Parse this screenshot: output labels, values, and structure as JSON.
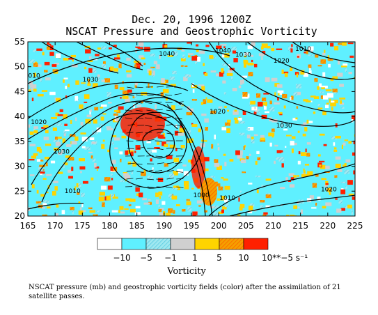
{
  "chart_data": {
    "type": "heatmap",
    "title": "Dec. 20, 1996  1200Z",
    "subtitle": "NSCAT Pressure and Geostrophic Vorticity",
    "xlim": [
      165,
      225
    ],
    "ylim": [
      20,
      55
    ],
    "x_ticks": [
      "165",
      "170",
      "175",
      "180",
      "185",
      "190",
      "195",
      "200",
      "205",
      "210",
      "215",
      "220",
      "225"
    ],
    "y_ticks": [
      "20",
      "25",
      "30",
      "35",
      "40",
      "45",
      "50",
      "55"
    ],
    "contour_labels": [
      {
        "text": "1040",
        "x": 190.5,
        "y": 52.2
      },
      {
        "text": "1040",
        "x": 200.8,
        "y": 52.8
      },
      {
        "text": "1030",
        "x": 204.5,
        "y": 52.0
      },
      {
        "text": "1020",
        "x": 211.5,
        "y": 50.8
      },
      {
        "text": "1010",
        "x": 215.5,
        "y": 53.2
      },
      {
        "text": "1030",
        "x": 176.5,
        "y": 47.0
      },
      {
        "text": "1010",
        "x": 165.8,
        "y": 47.8
      },
      {
        "text": "1020",
        "x": 167.0,
        "y": 38.5
      },
      {
        "text": "1030",
        "x": 171.2,
        "y": 32.5
      },
      {
        "text": "1020",
        "x": 199.8,
        "y": 40.6
      },
      {
        "text": "1030",
        "x": 212.0,
        "y": 37.8
      },
      {
        "text": "1010",
        "x": 173.2,
        "y": 24.6
      },
      {
        "text": "1000",
        "x": 196.8,
        "y": 23.8
      },
      {
        "text": "1010",
        "x": 201.6,
        "y": 23.2
      },
      {
        "text": "1020",
        "x": 220.2,
        "y": 25.0
      }
    ],
    "colorbar": {
      "label": "Vorticity",
      "unit": "10**−5 s⁻¹",
      "tick_labels": [
        "−10",
        "−5",
        "−1",
        "1",
        "5",
        "10"
      ],
      "bins": [
        {
          "color": "#ffffff",
          "pattern": false
        },
        {
          "color": "#5ff0ff",
          "pattern": false
        },
        {
          "color": "#9fe8f0",
          "pattern": true
        },
        {
          "color": "#d0d0d0",
          "pattern": false
        },
        {
          "color": "#ffd400",
          "pattern": false
        },
        {
          "color": "#f09000",
          "pattern": true
        },
        {
          "color": "#ff2000",
          "pattern": false
        }
      ]
    }
  },
  "caption": "NSCAT pressure (mb) and geostrophic vorticity fields (color) after the assimilation of 21 satellite passes."
}
